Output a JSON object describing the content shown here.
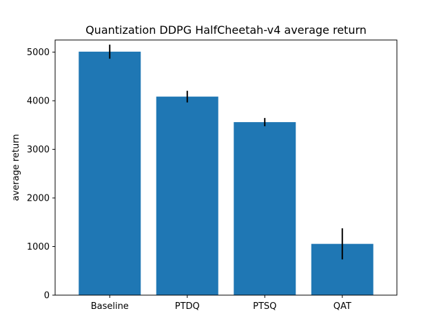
{
  "chart_data": {
    "type": "bar",
    "title": "Quantization DDPG HalfCheetah-v4 average return",
    "xlabel": "",
    "ylabel": "average return",
    "categories": [
      "Baseline",
      "PTDQ",
      "PTSQ",
      "QAT"
    ],
    "values": [
      5010,
      4085,
      3560,
      1055
    ],
    "error": [
      145,
      120,
      85,
      320
    ],
    "ylim": [
      0,
      5250
    ],
    "yticks": [
      0,
      1000,
      2000,
      3000,
      4000,
      5000
    ],
    "bar_color": "#1f77b4",
    "error_color": "#000000",
    "grid": false,
    "legend": false
  }
}
